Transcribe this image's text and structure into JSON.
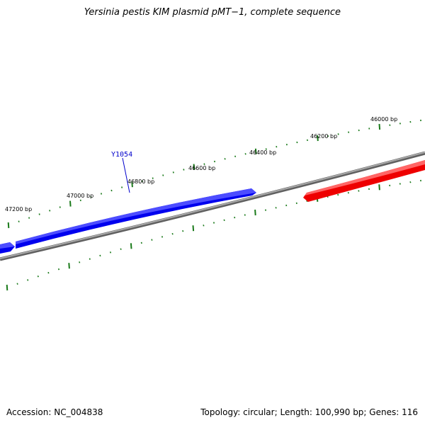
{
  "title": "Yersinia pestis KIM plasmid pMT−1, complete sequence",
  "ruler": {
    "unit": "bp",
    "labels": [
      "46000 bp",
      "46200 bp",
      "46400 bp",
      "46600 bp",
      "46800 bp",
      "47000 bp",
      "47200 bp"
    ],
    "tick_color": "#1a7a1a"
  },
  "genes": [
    {
      "label": "Y1054",
      "strand": "forward",
      "color": "#0000ff",
      "label_color": "#0000cc"
    },
    {
      "label": "",
      "strand": "forward",
      "color": "#0000ff"
    },
    {
      "label": "",
      "strand": "reverse",
      "color": "#ff0000"
    }
  ],
  "backbone_color": "#808080",
  "footer": {
    "accession_label": "Accession:",
    "accession": "NC_004838",
    "topology_label": "Topology:",
    "topology": "circular",
    "length_label": "Length:",
    "length": "100,990 bp",
    "genes_label": "Genes:",
    "genes_count": "116"
  }
}
